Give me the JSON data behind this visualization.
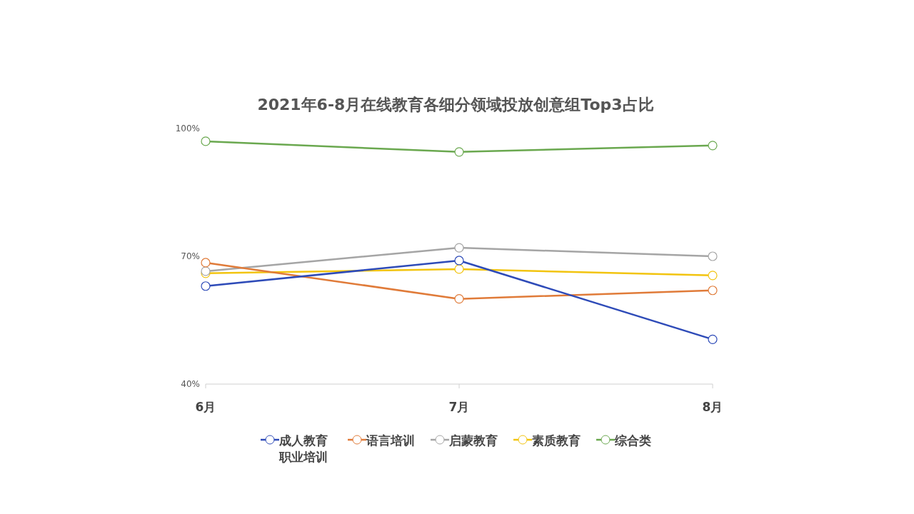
{
  "chart_data": {
    "type": "line",
    "title": "2021年6-8月在线教育各细分领域投放创意组Top3占比",
    "categories": [
      "6月",
      "7月",
      "8月"
    ],
    "series": [
      {
        "name": "成人教育职业培训",
        "color": "#2e4bb8",
        "values": [
          63,
          69,
          50.5
        ]
      },
      {
        "name": "语言培训",
        "color": "#e07b39",
        "values": [
          68.5,
          60,
          62
        ]
      },
      {
        "name": "启蒙教育",
        "color": "#a5a5a5",
        "values": [
          66.5,
          72,
          70
        ]
      },
      {
        "name": "素质教育",
        "color": "#f2c40f",
        "values": [
          66,
          67,
          65.5
        ]
      },
      {
        "name": "综合类",
        "color": "#6aa84f",
        "values": [
          97,
          94.5,
          96
        ]
      }
    ],
    "ylim": [
      40,
      100
    ],
    "yticks": [
      {
        "value": 40,
        "label": "40%"
      },
      {
        "value": 70,
        "label": "70%"
      },
      {
        "value": 100,
        "label": "100%"
      }
    ],
    "grid": false,
    "legend": "bottom",
    "marker": "circle",
    "line_style": "solid"
  }
}
